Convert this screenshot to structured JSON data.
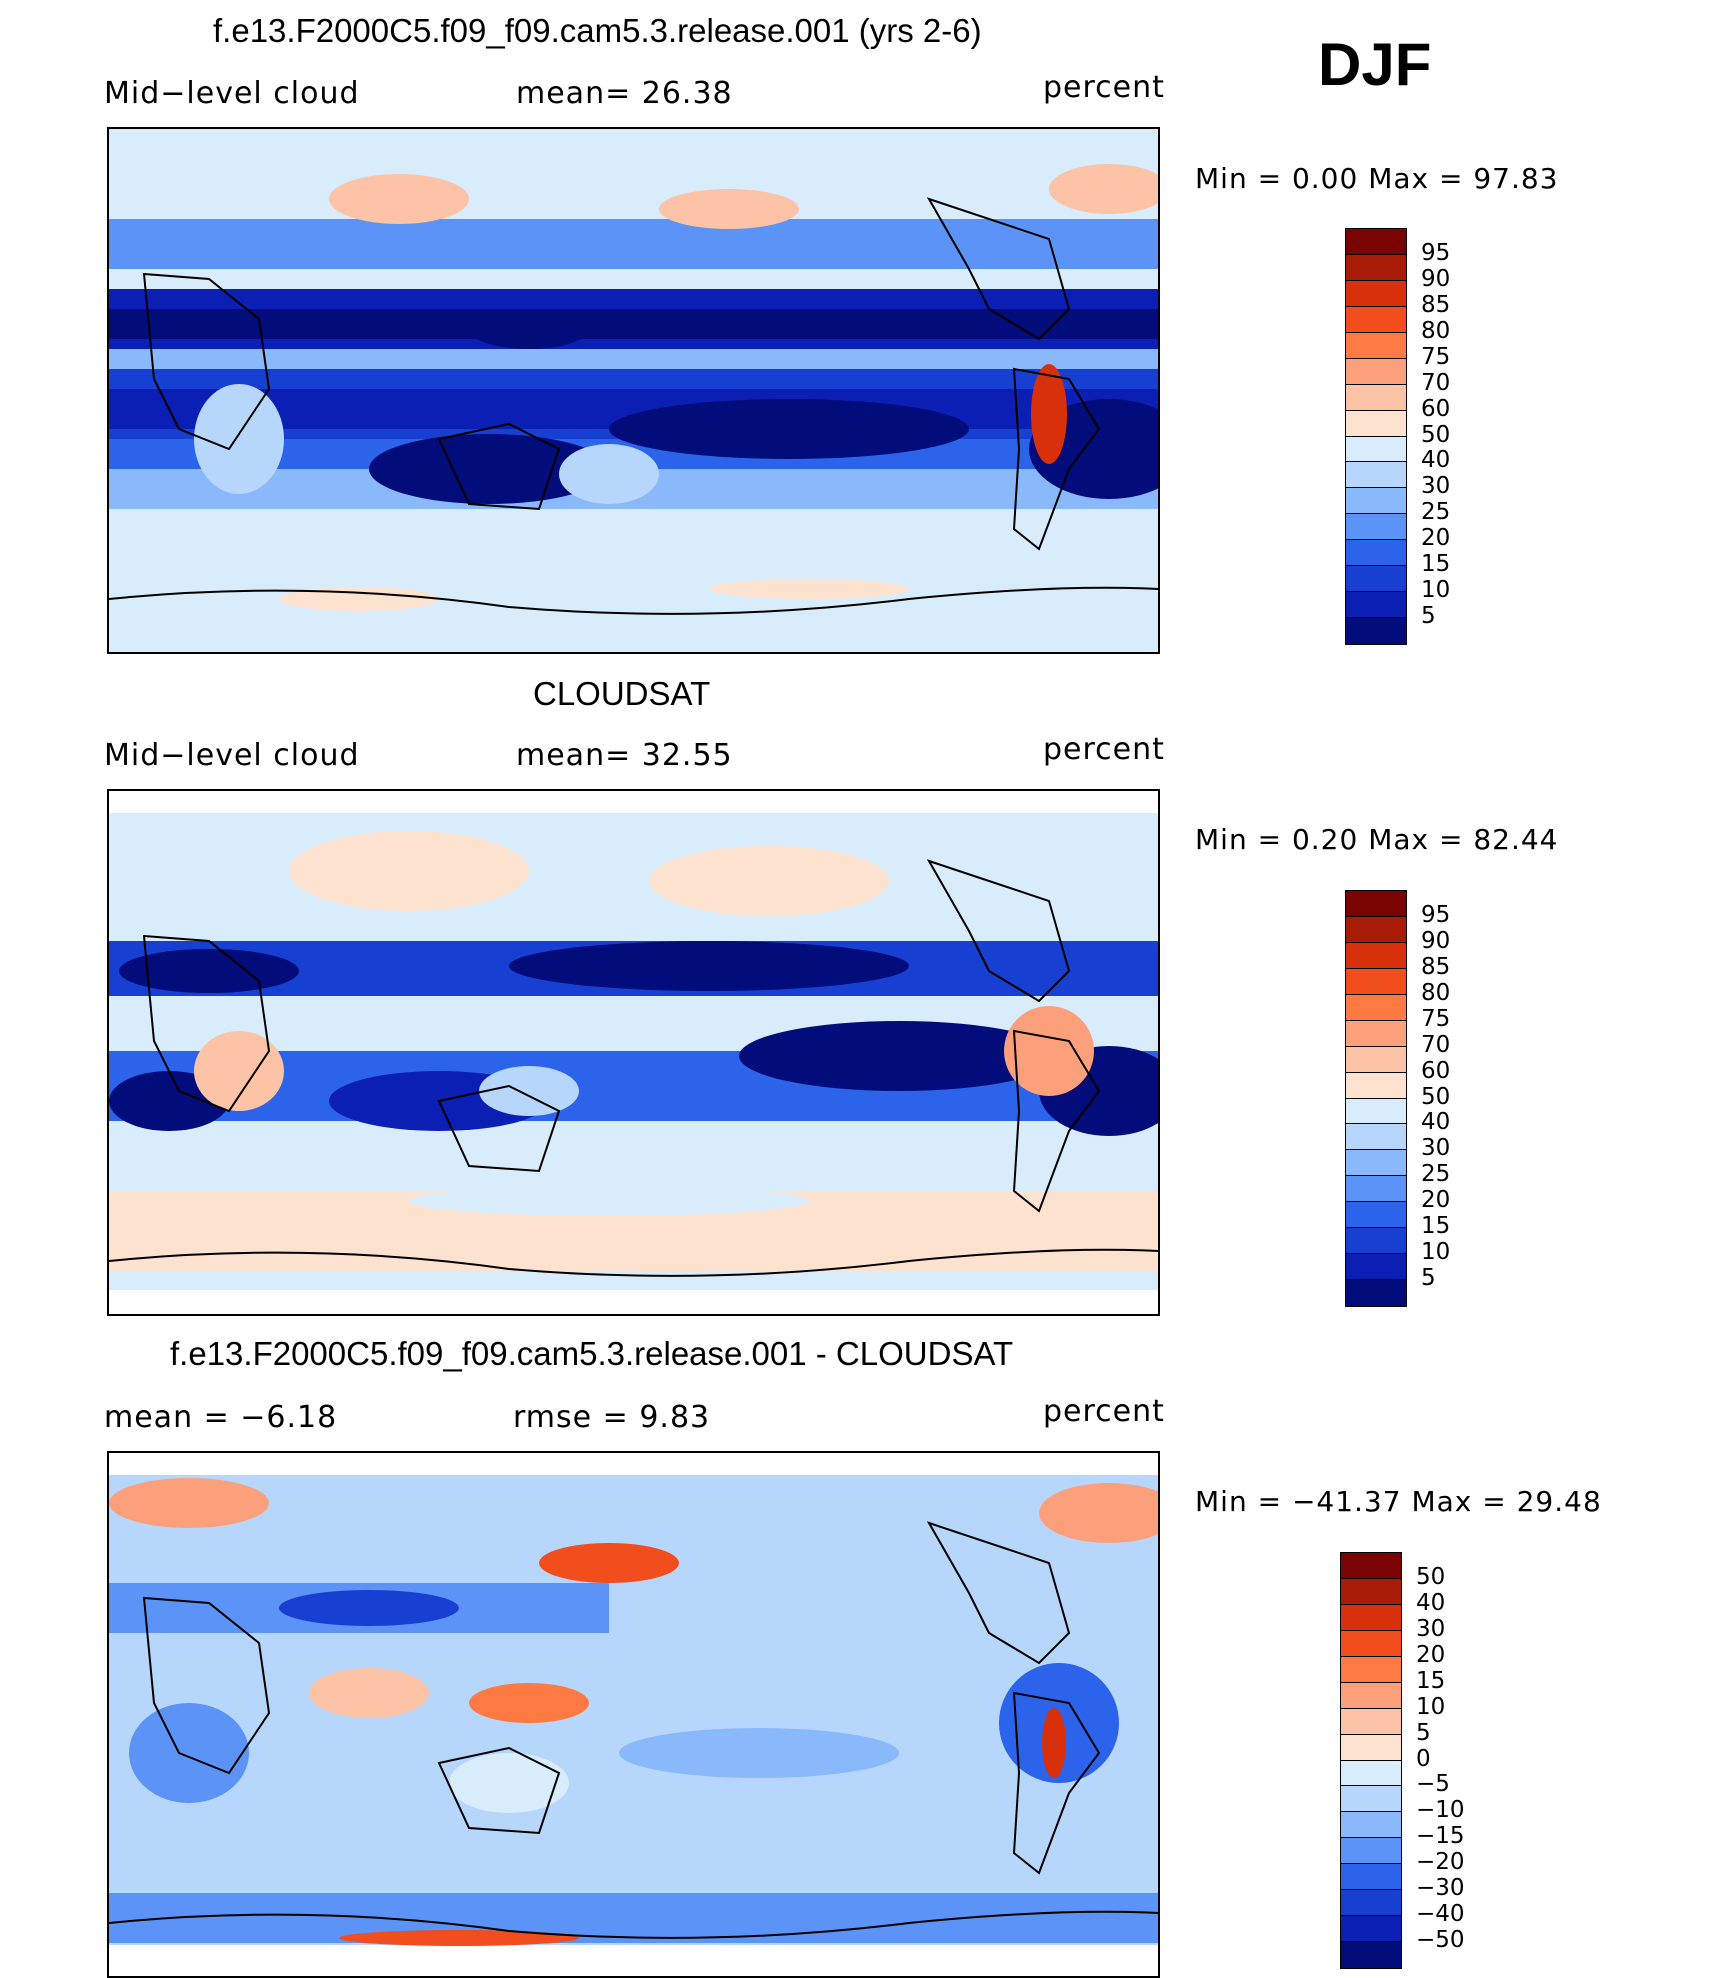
{
  "season": "DJF",
  "panels": [
    {
      "title": "f.e13.F2000C5.f09_f09.cam5.3.release.001 (yrs 2-6)",
      "left_label": "Mid−level cloud",
      "center_label": "mean=  26.38",
      "right_label": "percent",
      "minmax": "Min  =   0.00  Max  =   97.83",
      "colorbar_labels": [
        "95",
        "90",
        "85",
        "80",
        "75",
        "70",
        "60",
        "50",
        "40",
        "30",
        "25",
        "20",
        "15",
        "10",
        "5"
      ]
    },
    {
      "title": "CLOUDSAT",
      "left_label": "Mid−level cloud",
      "center_label": "mean=  32.55",
      "right_label": "percent",
      "minmax": "Min  =   0.20  Max  =   82.44",
      "colorbar_labels": [
        "95",
        "90",
        "85",
        "80",
        "75",
        "70",
        "60",
        "50",
        "40",
        "30",
        "25",
        "20",
        "15",
        "10",
        "5"
      ]
    },
    {
      "title": "f.e13.F2000C5.f09_f09.cam5.3.release.001 - CLOUDSAT",
      "left_label": "mean  =   −6.18",
      "center_label": "rmse  =    9.83",
      "right_label": "percent",
      "minmax": "Min  = −41.37  Max  =   29.48",
      "colorbar_labels": [
        "50",
        "40",
        "30",
        "20",
        "15",
        "10",
        "5",
        "0",
        "−5",
        "−10",
        "−15",
        "−20",
        "−30",
        "−40",
        "−50"
      ]
    }
  ],
  "colors": {
    "abs_scale": [
      "#7a0403",
      "#a81c07",
      "#d7300b",
      "#f24d1c",
      "#fd7a43",
      "#fca07c",
      "#fcc3a7",
      "#fde3cf",
      "#d9ecfb",
      "#b7d6fb",
      "#8ab9fb",
      "#5b93f6",
      "#2b63ea",
      "#1740d2",
      "#0b1fb4",
      "#020c7a"
    ],
    "diff_scale": [
      "#7a0403",
      "#a81c07",
      "#d7300b",
      "#f24d1c",
      "#fd7a43",
      "#fca07c",
      "#fcc3a7",
      "#fde3cf",
      "#d9ecfb",
      "#b7d6fb",
      "#8ab9fb",
      "#5b93f6",
      "#2b63ea",
      "#1740d2",
      "#0b1fb4",
      "#020c7a"
    ]
  }
}
